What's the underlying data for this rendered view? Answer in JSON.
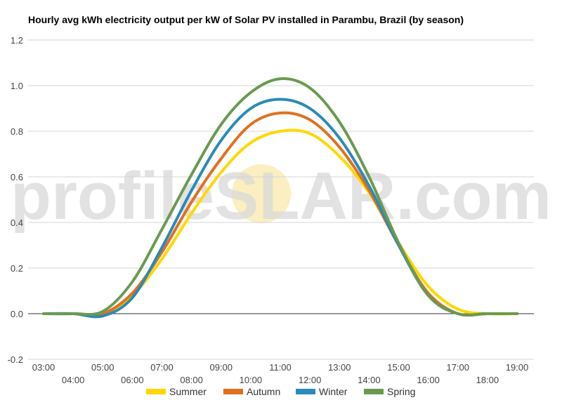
{
  "chart_data": {
    "type": "line",
    "title": "Hourly avg kWh electricity output per kW of Solar PV installed in Parambu, Brazil (by season)",
    "xlabel": "",
    "ylabel": "",
    "ylim": [
      -0.2,
      1.2
    ],
    "y_ticks": [
      "1.2",
      "1.0",
      "0.8",
      "0.6",
      "0.4",
      "0.2",
      "0.0",
      "-0.2"
    ],
    "grid": true,
    "legend": "bottom",
    "categories": [
      "03:00",
      "04:00",
      "05:00",
      "06:00",
      "07:00",
      "08:00",
      "09:00",
      "10:00",
      "11:00",
      "12:00",
      "13:00",
      "14:00",
      "15:00",
      "16:00",
      "17:00",
      "18:00",
      "19:00"
    ],
    "series": [
      {
        "name": "Summer",
        "color": "#ffd700",
        "values": [
          0.0,
          0.0,
          0.0,
          0.08,
          0.24,
          0.44,
          0.62,
          0.75,
          0.8,
          0.79,
          0.69,
          0.53,
          0.31,
          0.12,
          0.02,
          0.0,
          0.0
        ]
      },
      {
        "name": "Autumn",
        "color": "#e07020",
        "values": [
          0.0,
          0.0,
          0.0,
          0.09,
          0.27,
          0.49,
          0.68,
          0.83,
          0.88,
          0.85,
          0.73,
          0.54,
          0.3,
          0.09,
          0.0,
          0.0,
          0.0
        ]
      },
      {
        "name": "Winter",
        "color": "#2a8ab8",
        "values": [
          0.0,
          0.0,
          -0.01,
          0.07,
          0.29,
          0.54,
          0.76,
          0.9,
          0.94,
          0.9,
          0.77,
          0.56,
          0.3,
          0.08,
          0.0,
          0.0,
          0.0
        ]
      },
      {
        "name": "Spring",
        "color": "#6a9a50",
        "values": [
          0.0,
          0.0,
          0.01,
          0.14,
          0.37,
          0.61,
          0.83,
          0.97,
          1.03,
          0.99,
          0.84,
          0.6,
          0.31,
          0.08,
          0.0,
          0.0,
          0.0
        ]
      }
    ]
  },
  "watermark": {
    "left": "profile",
    "middle": "S",
    "right": "LAR.com"
  },
  "colors": {
    "grid": "#d4d4d4",
    "zero_line": "#333333",
    "sun": "#fbeec0"
  }
}
